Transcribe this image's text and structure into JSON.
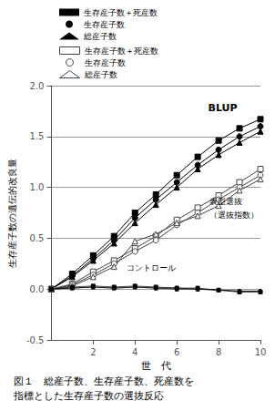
{
  "chart_data": {
    "type": "line",
    "x": [
      0,
      1,
      2,
      3,
      4,
      5,
      6,
      7,
      8,
      9,
      10
    ],
    "series": [
      {
        "name": "生存産子数＋死産数",
        "color": "#000000",
        "marker": "square",
        "values": [
          0,
          0.15,
          0.33,
          0.52,
          0.75,
          0.93,
          1.12,
          1.3,
          1.46,
          1.58,
          1.67
        ]
      },
      {
        "name": "生存産子数",
        "color": "#000000",
        "marker": "circle",
        "values": [
          0,
          0.13,
          0.3,
          0.48,
          0.7,
          0.88,
          1.05,
          1.22,
          1.37,
          1.5,
          1.6
        ]
      },
      {
        "name": "総産子数",
        "color": "#000000",
        "marker": "triangle",
        "values": [
          0,
          0.12,
          0.28,
          0.45,
          0.65,
          0.83,
          1.0,
          1.18,
          1.32,
          1.44,
          1.55
        ]
      },
      {
        "name": "生存産子数＋死産数",
        "color": "#444444",
        "marker": "open-square",
        "values": [
          0,
          0.05,
          0.17,
          0.28,
          0.4,
          0.52,
          0.68,
          0.8,
          0.92,
          1.05,
          1.18
        ]
      },
      {
        "name": "生存産子数",
        "color": "#444444",
        "marker": "open-circle",
        "values": [
          0,
          0.04,
          0.14,
          0.25,
          0.37,
          0.48,
          0.63,
          0.75,
          0.88,
          1.0,
          1.12
        ]
      },
      {
        "name": "総産子数",
        "color": "#444444",
        "marker": "open-triangle",
        "values": [
          0,
          0.03,
          0.12,
          0.22,
          0.47,
          0.54,
          0.65,
          0.72,
          0.82,
          0.97,
          1.08
        ]
      },
      {
        "color": "#000000",
        "marker": "square",
        "values": [
          0,
          0.02,
          0.03,
          0.02,
          0.03,
          0.02,
          0.01,
          0.01,
          -0.01,
          -0.03,
          -0.03
        ]
      },
      {
        "color": "#000000",
        "marker": "circle",
        "values": [
          0,
          0.01,
          0.02,
          0.01,
          0.02,
          0.01,
          0.01,
          0.0,
          -0.01,
          -0.02,
          -0.02
        ]
      },
      {
        "color": "#000000",
        "marker": "triangle",
        "values": [
          0,
          0.01,
          0.02,
          0.01,
          0.02,
          0.01,
          0.0,
          0.0,
          -0.01,
          -0.02,
          -0.02
        ]
      }
    ],
    "xlim": [
      0,
      10
    ],
    "xticks": [
      2,
      4,
      6,
      8,
      10
    ],
    "ylim": [
      -0.5,
      2.0
    ],
    "yticks": [
      -0.5,
      {
        "value": 0.0,
        "label": "0.0"
      },
      0.5,
      {
        "value": 1.0,
        "label": "1.0"
      },
      1.5,
      {
        "value": 2.0,
        "label": "2.0"
      }
    ],
    "xlabel": "世　代",
    "ylabel": "生存産子数の遺伝的改良量",
    "grid": true,
    "annotations": [
      {
        "text": "BLUP",
        "x": 7.5,
        "y": 1.73
      },
      {
        "text": "表型選抜",
        "x": 7.55,
        "y": 0.9
      },
      {
        "text": "（選抜指数）",
        "x": 7.55,
        "y": 0.77
      },
      {
        "text": "コントロール",
        "x": 3.6,
        "y": 0.17
      }
    ],
    "caption": [
      "図１　総産子数、生存産子数、死産数を",
      "指標とした生存産子数の選抜反応"
    ]
  }
}
